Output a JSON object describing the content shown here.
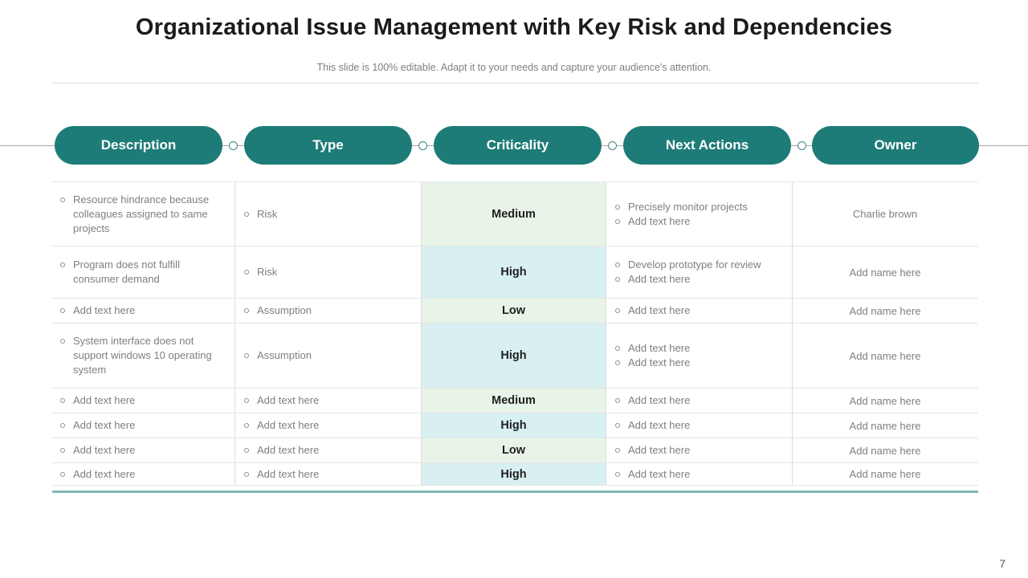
{
  "slide": {
    "title": "Organizational Issue Management with Key Risk and Dependencies",
    "subtitle": "This slide is 100% editable. Adapt it to your needs and capture your audience's attention.",
    "page_number": "7"
  },
  "colors": {
    "pill_teal": "#1e7c78",
    "criticality_green": "#e9f4e8",
    "criticality_cyan": "#d9f0f2",
    "table_bottom_line": "#84b7b4"
  },
  "pipeline": {
    "headers": [
      "Description",
      "Type",
      "Criticality",
      "Next Actions",
      "Owner"
    ]
  },
  "table": {
    "rows": [
      {
        "description": [
          "Resource hindrance because colleagues assigned to same projects"
        ],
        "type": [
          "Risk"
        ],
        "criticality": {
          "label": "Medium",
          "tone": "tone-green"
        },
        "next_actions": [
          "Precisely monitor projects",
          "Add text here"
        ],
        "owner": "Charlie brown"
      },
      {
        "description": [
          "Program does not fulfill consumer demand"
        ],
        "type": [
          "Risk"
        ],
        "criticality": {
          "label": "High",
          "tone": "tone-cyan"
        },
        "next_actions": [
          "Develop prototype for review",
          "Add text here"
        ],
        "owner": "Add name here"
      },
      {
        "description": [
          "Add text here"
        ],
        "type": [
          "Assumption"
        ],
        "criticality": {
          "label": "Low",
          "tone": "tone-green"
        },
        "next_actions": [
          "Add text here"
        ],
        "owner": "Add name here"
      },
      {
        "description": [
          "System interface does not support windows 10 operating system"
        ],
        "type": [
          "Assumption"
        ],
        "criticality": {
          "label": "High",
          "tone": "tone-cyan"
        },
        "next_actions": [
          "Add text here",
          "Add text here"
        ],
        "owner": "Add name here"
      },
      {
        "description": [
          "Add text here"
        ],
        "type": [
          "Add text here"
        ],
        "criticality": {
          "label": "Medium",
          "tone": "tone-green"
        },
        "next_actions": [
          "Add text here"
        ],
        "owner": "Add name here"
      },
      {
        "description": [
          "Add text here"
        ],
        "type": [
          "Add text here"
        ],
        "criticality": {
          "label": "High",
          "tone": "tone-cyan"
        },
        "next_actions": [
          "Add text here"
        ],
        "owner": "Add name here"
      },
      {
        "description": [
          "Add text here"
        ],
        "type": [
          "Add text here"
        ],
        "criticality": {
          "label": "Low",
          "tone": "tone-green"
        },
        "next_actions": [
          "Add text here"
        ],
        "owner": "Add name here"
      },
      {
        "description": [
          "Add text here"
        ],
        "type": [
          "Add text here"
        ],
        "criticality": {
          "label": "High",
          "tone": "tone-cyan"
        },
        "next_actions": [
          "Add text here"
        ],
        "owner": "Add name here"
      }
    ]
  }
}
